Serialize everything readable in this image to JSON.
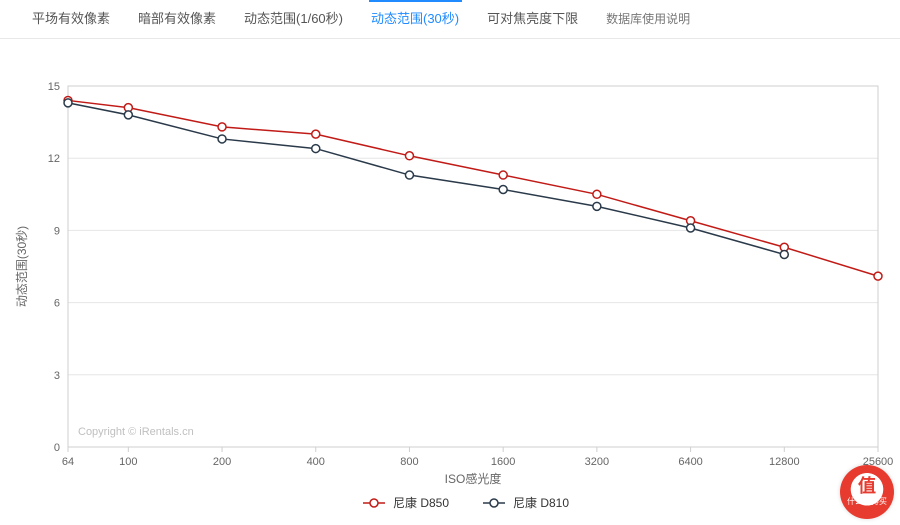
{
  "tabs": [
    {
      "label": "平场有效像素",
      "active": false
    },
    {
      "label": "暗部有效像素",
      "active": false
    },
    {
      "label": "动态范围(1/60秒)",
      "active": false
    },
    {
      "label": "动态范围(30秒)",
      "active": true
    },
    {
      "label": "可对焦亮度下限",
      "active": false
    },
    {
      "label": "数据库使用说明",
      "active": false,
      "small": true
    }
  ],
  "chart": {
    "type": "line",
    "background_color": "#ffffff",
    "plot_border_color": "#cfcfcf",
    "grid_color": "#e6e6e6",
    "watermark": "Copyright © iRentals.cn",
    "x_axis": {
      "label": "ISO感光度",
      "scale": "log",
      "ticks": [
        64,
        100,
        200,
        400,
        800,
        1600,
        3200,
        6400,
        12800,
        25600
      ],
      "label_fontsize": 12,
      "tick_fontsize": 11
    },
    "y_axis": {
      "label": "动态范围(30秒)",
      "ylim": [
        0,
        15
      ],
      "ticks": [
        0,
        3,
        6,
        9,
        12,
        15
      ],
      "label_fontsize": 12,
      "tick_fontsize": 11
    },
    "series": [
      {
        "name": "尼康 D850",
        "color": "#c11b17",
        "marker_fill": "#ffffff",
        "marker_stroke": "#c11b17",
        "line_width": 1.5,
        "marker_radius": 4,
        "data": [
          {
            "x": 64,
            "y": 14.4
          },
          {
            "x": 100,
            "y": 14.1
          },
          {
            "x": 200,
            "y": 13.3
          },
          {
            "x": 400,
            "y": 13.0
          },
          {
            "x": 800,
            "y": 12.1
          },
          {
            "x": 1600,
            "y": 11.3
          },
          {
            "x": 3200,
            "y": 10.5
          },
          {
            "x": 6400,
            "y": 9.4
          },
          {
            "x": 12800,
            "y": 8.3
          },
          {
            "x": 25600,
            "y": 7.1
          }
        ]
      },
      {
        "name": "尼康 D810",
        "color": "#2a3a4a",
        "marker_fill": "#ffffff",
        "marker_stroke": "#2a3a4a",
        "line_width": 1.5,
        "marker_radius": 4,
        "data": [
          {
            "x": 64,
            "y": 14.3
          },
          {
            "x": 100,
            "y": 13.8
          },
          {
            "x": 200,
            "y": 12.8
          },
          {
            "x": 400,
            "y": 12.4
          },
          {
            "x": 800,
            "y": 11.3
          },
          {
            "x": 1600,
            "y": 10.7
          },
          {
            "x": 3200,
            "y": 10.0
          },
          {
            "x": 6400,
            "y": 9.1
          },
          {
            "x": 12800,
            "y": 8.0
          }
        ]
      }
    ]
  },
  "brand": {
    "glyph": "值",
    "text": "什么值得买"
  }
}
